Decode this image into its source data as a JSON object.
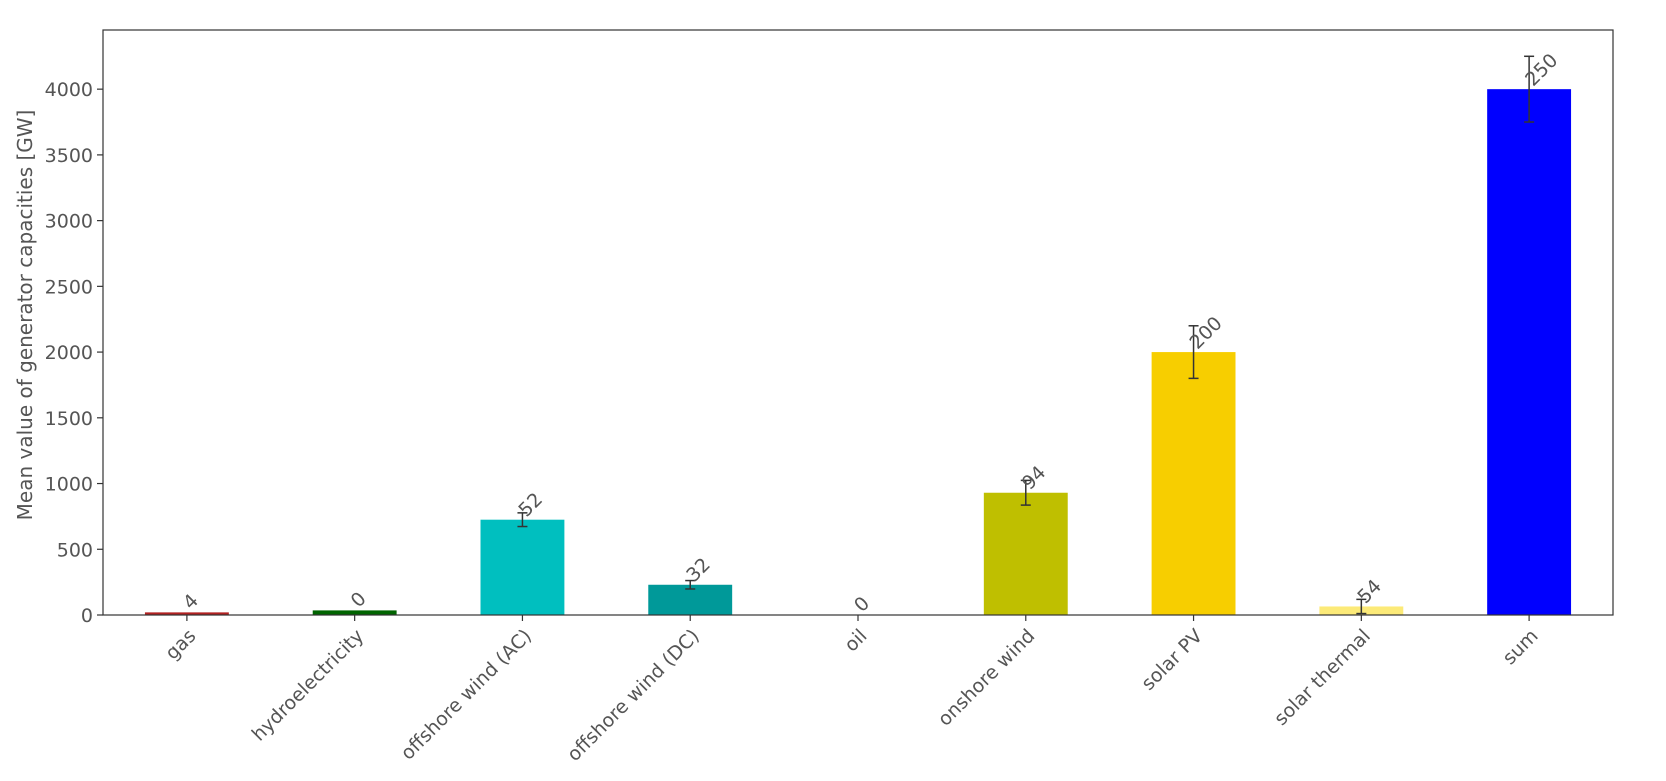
{
  "chart_data": {
    "type": "bar",
    "title": "",
    "xlabel": "",
    "ylabel": "Mean value of generator capacities [GW]",
    "ylim": [
      0,
      4450
    ],
    "yticks": [
      0,
      500,
      1000,
      1500,
      2000,
      2500,
      3000,
      3500,
      4000
    ],
    "grid": false,
    "categories": [
      "gas",
      "hydroelectricity",
      "offshore wind (AC)",
      "offshore wind (DC)",
      "oil",
      "onshore wind",
      "solar PV",
      "solar thermal",
      "sum"
    ],
    "values": [
      20,
      35,
      725,
      230,
      0,
      930,
      2000,
      65,
      4000
    ],
    "error": [
      null,
      null,
      52,
      32,
      null,
      94,
      200,
      54,
      250
    ],
    "data_labels": [
      "4",
      "0",
      "52",
      "32",
      "0",
      "94",
      "200",
      "54",
      "250"
    ],
    "colors": [
      "#b22222",
      "#006400",
      "#00bfbf",
      "#009999",
      "#000000",
      "#bfbf00",
      "#f7ce00",
      "#fcea78",
      "#0000ff"
    ]
  }
}
